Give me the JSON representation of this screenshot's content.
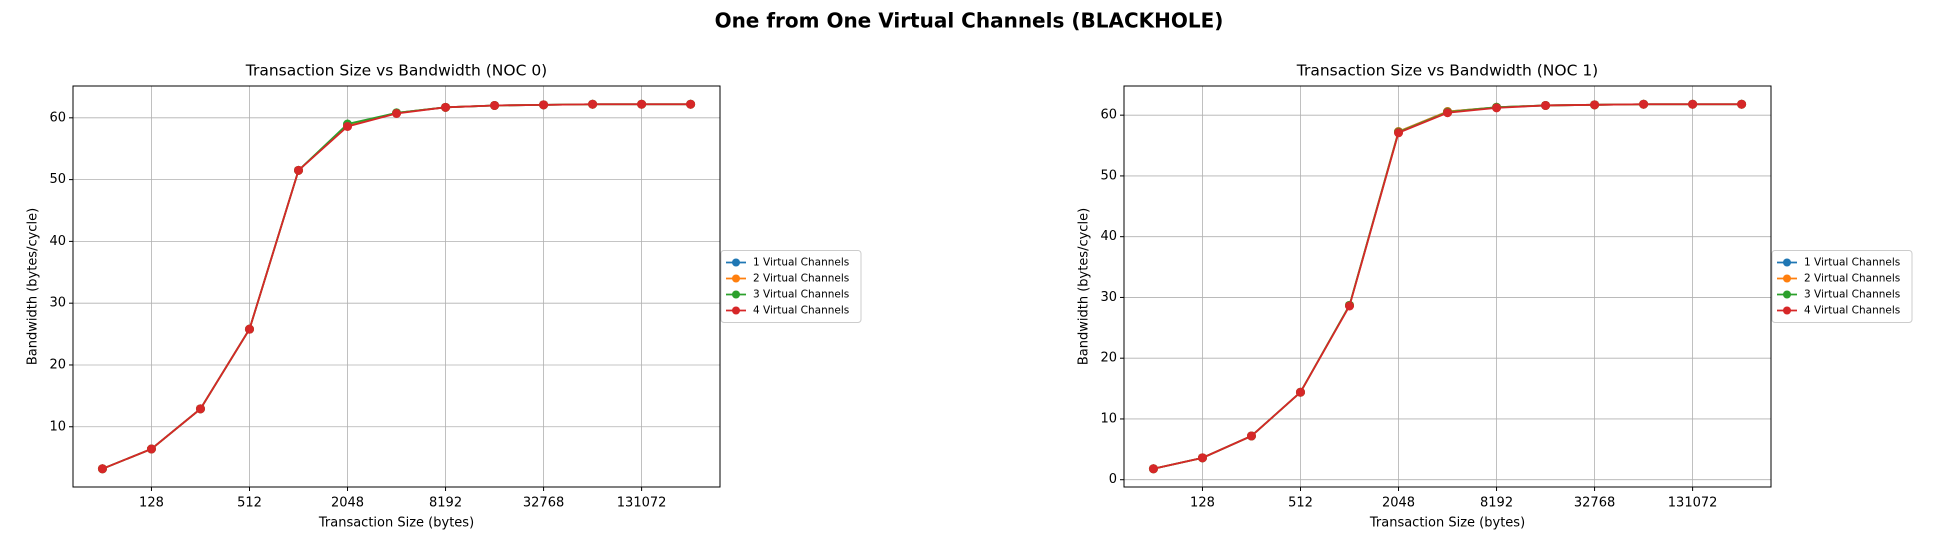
{
  "title": "One from One Virtual Channels (BLACKHOLE)",
  "chart_data": [
    {
      "type": "line",
      "title": "Transaction Size vs Bandwidth (NOC 0)",
      "x_label": "Transaction Size (bytes)",
      "y_label": "Bandwidth (bytes/cycle)",
      "x": [
        64,
        128,
        256,
        512,
        1024,
        2048,
        4096,
        8192,
        16384,
        32768,
        65536,
        131072,
        262144
      ],
      "xscale": "log",
      "log_base": 2,
      "xlim": [
        42.2,
        397187
      ],
      "xticks": [
        128,
        512,
        2048,
        8192,
        32768,
        131072
      ],
      "ylim": [
        0.25,
        65.15
      ],
      "yticks": [
        10,
        20,
        30,
        40,
        50,
        60
      ],
      "grid": true,
      "legend_loc": "outside right",
      "series": [
        {
          "name": "1 Virtual Channels",
          "color": "#1f77b4",
          "values": [
            3.2,
            6.4,
            12.9,
            25.8,
            51.5,
            58.8,
            60.8,
            61.7,
            62.0,
            62.1,
            62.2,
            62.2,
            62.2
          ]
        },
        {
          "name": "2 Virtual Channels",
          "color": "#ff7f0e",
          "values": [
            3.2,
            6.4,
            12.9,
            25.8,
            51.5,
            58.8,
            60.8,
            61.7,
            62.0,
            62.1,
            62.2,
            62.2,
            62.2
          ]
        },
        {
          "name": "3 Virtual Channels",
          "color": "#2ca02c",
          "values": [
            3.2,
            6.4,
            12.9,
            25.8,
            51.5,
            59.0,
            60.8,
            61.7,
            62.0,
            62.1,
            62.2,
            62.2,
            62.2
          ]
        },
        {
          "name": "4 Virtual Channels",
          "color": "#d62728",
          "values": [
            3.2,
            6.4,
            12.9,
            25.8,
            51.5,
            58.6,
            60.7,
            61.7,
            62.0,
            62.1,
            62.2,
            62.2,
            62.2
          ]
        }
      ]
    },
    {
      "type": "line",
      "title": "Transaction Size vs Bandwidth (NOC 1)",
      "x_label": "Transaction Size (bytes)",
      "y_label": "Bandwidth (bytes/cycle)",
      "x": [
        64,
        128,
        256,
        512,
        1024,
        2048,
        4096,
        8192,
        16384,
        32768,
        65536,
        131072,
        262144
      ],
      "xscale": "log",
      "log_base": 2,
      "xlim": [
        42.2,
        397187
      ],
      "xticks": [
        128,
        512,
        2048,
        8192,
        32768,
        131072
      ],
      "ylim": [
        -1.2,
        64.8
      ],
      "yticks": [
        0,
        10,
        20,
        30,
        40,
        50,
        60
      ],
      "grid": true,
      "legend_loc": "outside right",
      "series": [
        {
          "name": "1 Virtual Channels",
          "color": "#1f77b4",
          "values": [
            1.8,
            3.6,
            7.2,
            14.4,
            28.7,
            57.3,
            60.6,
            61.3,
            61.6,
            61.7,
            61.8,
            61.8,
            61.8
          ]
        },
        {
          "name": "2 Virtual Channels",
          "color": "#ff7f0e",
          "values": [
            1.8,
            3.6,
            7.2,
            14.4,
            28.7,
            57.3,
            60.6,
            61.3,
            61.6,
            61.7,
            61.8,
            61.8,
            61.8
          ]
        },
        {
          "name": "3 Virtual Channels",
          "color": "#2ca02c",
          "values": [
            1.8,
            3.6,
            7.2,
            14.4,
            28.7,
            57.2,
            60.5,
            61.3,
            61.6,
            61.7,
            61.8,
            61.8,
            61.8
          ]
        },
        {
          "name": "4 Virtual Channels",
          "color": "#d62728",
          "values": [
            1.8,
            3.6,
            7.2,
            14.4,
            28.6,
            57.1,
            60.4,
            61.2,
            61.6,
            61.7,
            61.8,
            61.8,
            61.8
          ]
        }
      ]
    }
  ]
}
